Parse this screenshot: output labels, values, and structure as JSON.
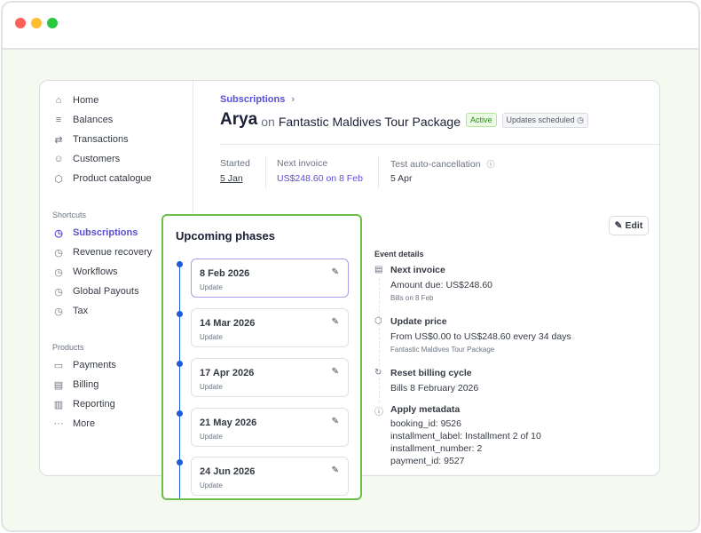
{
  "window": {
    "controls": {
      "close_color": "#fe5f57",
      "minimize_color": "#febc2e",
      "maximize_color": "#28c840"
    }
  },
  "sidebar": {
    "items": [
      {
        "label": "Home",
        "icon": "home-icon"
      },
      {
        "label": "Balances",
        "icon": "balances-icon"
      },
      {
        "label": "Transactions",
        "icon": "transactions-icon"
      },
      {
        "label": "Customers",
        "icon": "person-icon"
      },
      {
        "label": "Product catalogue",
        "icon": "box-icon"
      }
    ],
    "shortcuts_label": "Shortcuts",
    "shortcuts": [
      {
        "label": "Subscriptions",
        "active": true
      },
      {
        "label": "Revenue recovery"
      },
      {
        "label": "Workflows"
      },
      {
        "label": "Global Payouts"
      },
      {
        "label": "Tax"
      }
    ],
    "products_label": "Products",
    "products": [
      {
        "label": "Payments"
      },
      {
        "label": "Billing"
      },
      {
        "label": "Reporting"
      },
      {
        "label": "More"
      }
    ]
  },
  "header": {
    "breadcrumb": "Subscriptions",
    "customer": "Arya",
    "on": "on",
    "product": "Fantastic Maldives Tour Package",
    "status_badge": "Active",
    "updates_badge": "Updates scheduled"
  },
  "stats": {
    "started_label": "Started",
    "started_value": "5 Jan",
    "next_invoice_label": "Next invoice",
    "next_invoice_value": "US$248.60 on 8 Feb",
    "auto_cancel_label": "Test auto-cancellation",
    "auto_cancel_value": "5 Apr"
  },
  "edit_label": "Edit",
  "event_details": {
    "title": "Event details",
    "next_invoice": {
      "title": "Next invoice",
      "line": "Amount due: US$248.60",
      "sub": "Bills on 8 Feb"
    },
    "update_price": {
      "title": "Update price",
      "line": "From US$0.00 to US$248.60 every 34 days",
      "sub": "Fantastic Maldives Tour Package"
    },
    "reset": {
      "title": "Reset billing cycle",
      "line": "Bills 8 February 2026"
    },
    "metadata": {
      "title": "Apply metadata",
      "lines": [
        "booking_id: 9526",
        "installment_label: Installment 2 of 10",
        "installment_number: 2",
        "payment_id: 9527"
      ]
    }
  },
  "phases": {
    "title": "Upcoming phases",
    "items": [
      {
        "date": "8 Feb 2026",
        "type": "Update"
      },
      {
        "date": "14 Mar 2026",
        "type": "Update"
      },
      {
        "date": "17 Apr 2026",
        "type": "Update"
      },
      {
        "date": "21 May 2026",
        "type": "Update"
      },
      {
        "date": "24 Jun 2026",
        "type": "Update"
      }
    ]
  },
  "colors": {
    "accent": "#5b4fd6",
    "highlight_border": "#6cc04a",
    "timeline_dot": "#1e5bd6"
  }
}
